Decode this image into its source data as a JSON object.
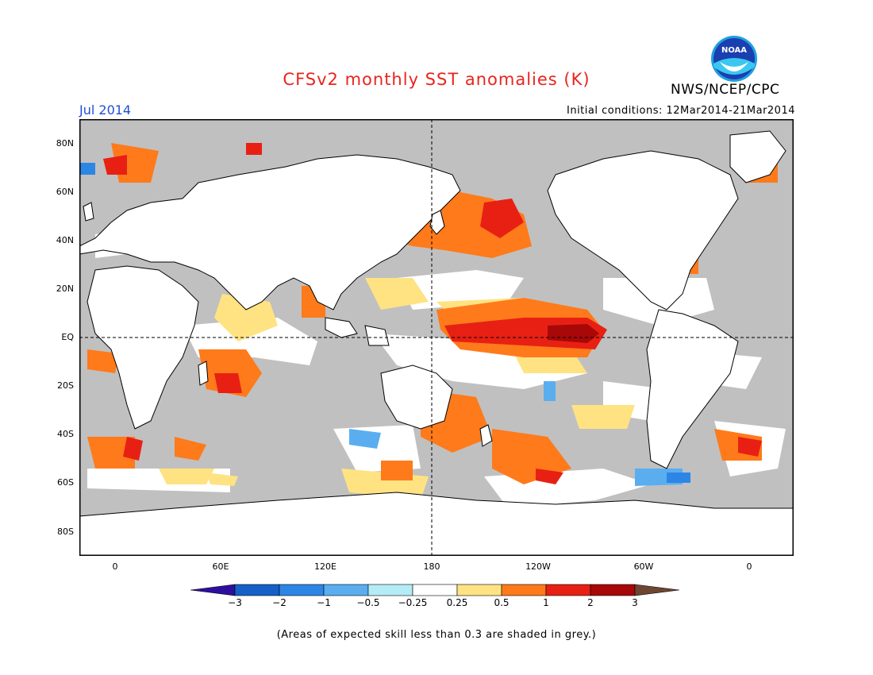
{
  "title": "CFSv2 monthly SST anomalies (K)",
  "agency": "NWS/NCEP/CPC",
  "logo_text": "NOAA",
  "period": "Jul 2014",
  "initial_conditions": "Initial conditions: 12Mar2014-21Mar2014",
  "lat_labels": [
    "80N",
    "60N",
    "40N",
    "20N",
    "EQ",
    "20S",
    "40S",
    "60S",
    "80S"
  ],
  "lon_labels": [
    "0",
    "60E",
    "120E",
    "180",
    "120W",
    "60W",
    "0"
  ],
  "colorbar": {
    "labels": [
      "−3",
      "−2",
      "−1",
      "−0.5",
      "−0.25",
      "0.25",
      "0.5",
      "1",
      "2",
      "3"
    ],
    "colors": [
      "#2d0fa0",
      "#1560c8",
      "#2c86e6",
      "#5aaef0",
      "#b4ecf6",
      "#ffffff",
      "#ffe382",
      "#ff7a1a",
      "#e82014",
      "#a80808",
      "#6e4632"
    ]
  },
  "colors": {
    "skill_grey": "#c0c0c0",
    "land": "#ffffff",
    "title": "#e8251e",
    "period": "#1f4fd6"
  },
  "footnote": "(Areas of expected skill less than 0.3 are shaded in grey.)"
}
